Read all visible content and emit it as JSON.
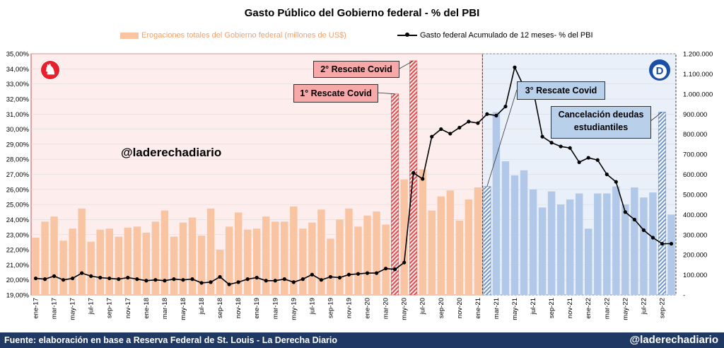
{
  "title": "Gasto Público del Gobierno federal - % del PBI",
  "legend": {
    "bars": "Erogaciones totales del Gobierno federal (millones de US$)",
    "line": "Gasto federal Acumulado de 12 meses- % del PBI"
  },
  "annotations": {
    "rescate1": "1° Rescate Covid",
    "rescate2": "2° Rescate Covid",
    "rescate3": "3° Rescate Covid",
    "cancelacion": "Cancelación deudas estudiantiles",
    "watermark": "@laderechadiario"
  },
  "badges": {
    "republican": "elephant-icon",
    "democrat": "D"
  },
  "footer": {
    "source": "Fuente: elaboración en base a Reserva Federal de St. Louis - La Derecha Diario",
    "handle": "@laderechadiario"
  },
  "colors": {
    "bar_rep": "#f8c4a2",
    "bar_dem": "#b1c8e8",
    "rescue": "#e84c4c",
    "panel_rep": "#fdeeed",
    "panel_dem": "#e9f0f9",
    "line": "#000000"
  },
  "chart_data": {
    "type": "bar+line",
    "categories": [
      "ene-17",
      "feb-17",
      "mar-17",
      "abr-17",
      "may-17",
      "jun-17",
      "jul-17",
      "ago-17",
      "sep-17",
      "oct-17",
      "nov-17",
      "dic-17",
      "ene-18",
      "feb-18",
      "mar-18",
      "abr-18",
      "may-18",
      "jun-18",
      "jul-18",
      "ago-18",
      "sep-18",
      "oct-18",
      "nov-18",
      "dic-18",
      "ene-19",
      "feb-19",
      "mar-19",
      "abr-19",
      "may-19",
      "jun-19",
      "jul-19",
      "ago-19",
      "sep-19",
      "oct-19",
      "nov-19",
      "dic-19",
      "ene-20",
      "feb-20",
      "mar-20",
      "abr-20",
      "may-20",
      "jun-20",
      "jul-20",
      "ago-20",
      "sep-20",
      "oct-20",
      "nov-20",
      "dic-20",
      "ene-21",
      "feb-21",
      "mar-21",
      "abr-21",
      "may-21",
      "jun-21",
      "jul-21",
      "ago-21",
      "sep-21",
      "oct-21",
      "nov-21",
      "dic-21",
      "ene-22",
      "feb-22",
      "mar-22",
      "abr-22",
      "may-22",
      "jun-22",
      "jul-22",
      "ago-22",
      "sep-22",
      "oct-22"
    ],
    "x_tick_labels": [
      "ene-17",
      "mar-17",
      "may-17",
      "jul-17",
      "sep-17",
      "nov-17",
      "ene-18",
      "mar-18",
      "may-18",
      "jul-18",
      "sep-18",
      "nov-18",
      "ene-19",
      "mar-19",
      "may-19",
      "jul-19",
      "sep-19",
      "nov-19",
      "ene-20",
      "mar-20",
      "may-20",
      "jul-20",
      "sep-20",
      "nov-20",
      "ene-21",
      "mar-21",
      "may-21",
      "jul-21",
      "sep-21",
      "nov-21",
      "ene-22",
      "mar-22",
      "may-22",
      "jul-22",
      "sep-22"
    ],
    "series": [
      {
        "name": "Erogaciones totales del Gobierno federal (millones de US$)",
        "axis": "right",
        "values": [
          285000,
          365000,
          390000,
          270000,
          330000,
          430000,
          265000,
          325000,
          330000,
          290000,
          335000,
          340000,
          310000,
          365000,
          420000,
          290000,
          360000,
          385000,
          295000,
          430000,
          225000,
          340000,
          410000,
          325000,
          330000,
          390000,
          365000,
          365000,
          440000,
          330000,
          360000,
          425000,
          280000,
          375000,
          430000,
          340000,
          395000,
          415000,
          350000,
          1000000,
          575000,
          1165000,
          625000,
          420000,
          490000,
          520000,
          370000,
          475000,
          535000,
          540000,
          910000,
          665000,
          595000,
          620000,
          525000,
          435000,
          515000,
          450000,
          475000,
          505000,
          330000,
          505000,
          505000,
          540000,
          450000,
          535000,
          485000,
          510000,
          910000,
          400000
        ]
      },
      {
        "name": "Gasto federal Acumulado de 12 meses- % del PBI",
        "axis": "left",
        "values": [
          20.1,
          20.05,
          20.25,
          20.0,
          20.1,
          20.45,
          20.25,
          20.15,
          20.1,
          20.05,
          20.15,
          20.05,
          19.95,
          20.0,
          19.95,
          20.05,
          20.0,
          20.05,
          19.8,
          19.85,
          20.2,
          19.7,
          19.85,
          20.05,
          20.15,
          19.95,
          19.95,
          20.05,
          19.85,
          20.05,
          20.35,
          20.0,
          20.2,
          20.15,
          20.35,
          20.4,
          20.45,
          20.45,
          20.75,
          20.7,
          21.15,
          27.1,
          26.7,
          29.5,
          30.0,
          29.7,
          30.1,
          30.5,
          30.4,
          31.0,
          30.9,
          31.5,
          34.1,
          32.8,
          32.6,
          29.5,
          29.1,
          28.85,
          28.75,
          27.8,
          28.1,
          27.95,
          27.0,
          26.5,
          24.5,
          24.0,
          23.3,
          22.8,
          22.4,
          22.4
        ]
      }
    ],
    "left_axis": {
      "min": 19,
      "max": 35,
      "ticks": [
        "19,00%",
        "20,00%",
        "21,00%",
        "22,00%",
        "23,00%",
        "24,00%",
        "25,00%",
        "26,00%",
        "27,00%",
        "28,00%",
        "29,00%",
        "30,00%",
        "31,00%",
        "32,00%",
        "33,00%",
        "34,00%",
        "35,00%"
      ]
    },
    "right_axis": {
      "min": 0,
      "max": 1200000,
      "ticks": [
        "-",
        "100.000",
        "200.000",
        "300.000",
        "400.000",
        "500.000",
        "600.000",
        "700.000",
        "800.000",
        "900.000",
        "1.000.000",
        "1.100.000",
        "1.200.000"
      ]
    },
    "rescue_months": [
      "abr-20",
      "jun-20",
      "feb-21"
    ],
    "cancellation_month": "sep-22",
    "republican_range": [
      "ene-17",
      "ene-21"
    ],
    "democrat_range": [
      "feb-21",
      "oct-22"
    ]
  }
}
